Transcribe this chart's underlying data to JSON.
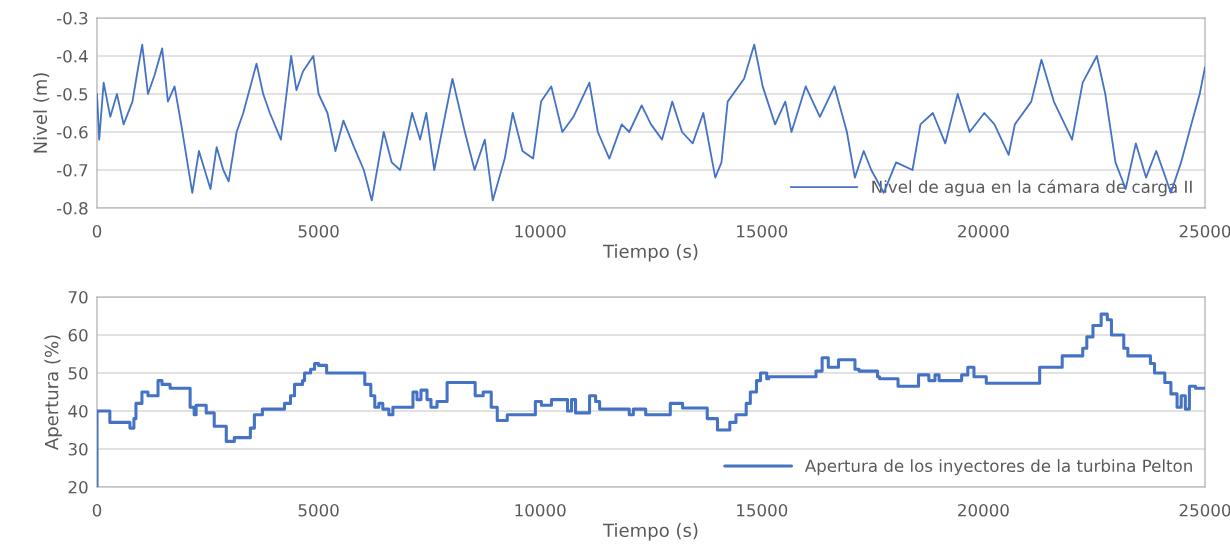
{
  "chart_data": [
    {
      "type": "line",
      "xlabel": "Tiempo (s)",
      "ylabel": "Nivel (m)",
      "xlim": [
        0,
        25000
      ],
      "xticks": [
        0,
        5000,
        10000,
        15000,
        20000,
        25000
      ],
      "ylim": [
        -0.8,
        -0.3
      ],
      "yticks": [
        -0.8,
        -0.7,
        -0.6,
        -0.5,
        -0.4,
        -0.3
      ],
      "grid": "y",
      "legend": "bottom right",
      "series": [
        {
          "name": "Nivel de agua en la cámara de carga II",
          "color": "#4472c4",
          "x": [
            0,
            50,
            150,
            300,
            450,
            600,
            800,
            900,
            1020,
            1150,
            1300,
            1470,
            1600,
            1750,
            1900,
            2150,
            2300,
            2560,
            2700,
            2850,
            2970,
            3150,
            3300,
            3600,
            3750,
            3900,
            4150,
            4380,
            4500,
            4650,
            4880,
            5000,
            5200,
            5380,
            5560,
            5800,
            6020,
            6200,
            6470,
            6650,
            6840,
            7110,
            7290,
            7430,
            7610,
            8020,
            8300,
            8520,
            8750,
            8930,
            9200,
            9380,
            9600,
            9840,
            10020,
            10250,
            10500,
            10750,
            11110,
            11300,
            11560,
            11840,
            12009,
            12290,
            12500,
            12750,
            12980,
            13200,
            13440,
            13680,
            13950,
            14090,
            14230,
            14600,
            14830,
            15020,
            15300,
            15530,
            15670,
            15990,
            16310,
            16640,
            16920,
            17100,
            17300,
            17470,
            17750,
            18030,
            18400,
            18580,
            18860,
            19140,
            19420,
            19690,
            20020,
            20250,
            20570,
            20710,
            21080,
            21310,
            21590,
            22000,
            22240,
            22560,
            22750,
            22980,
            23210,
            23440,
            23670,
            23900,
            24230,
            24460,
            24690,
            24880,
            25000
          ],
          "values": [
            -0.5,
            -0.62,
            -0.47,
            -0.56,
            -0.5,
            -0.58,
            -0.52,
            -0.45,
            -0.37,
            -0.5,
            -0.45,
            -0.38,
            -0.52,
            -0.48,
            -0.58,
            -0.76,
            -0.65,
            -0.75,
            -0.64,
            -0.7,
            -0.73,
            -0.6,
            -0.55,
            -0.42,
            -0.5,
            -0.55,
            -0.62,
            -0.4,
            -0.49,
            -0.44,
            -0.4,
            -0.5,
            -0.55,
            -0.65,
            -0.57,
            -0.64,
            -0.7,
            -0.78,
            -0.6,
            -0.68,
            -0.7,
            -0.55,
            -0.62,
            -0.55,
            -0.7,
            -0.46,
            -0.6,
            -0.7,
            -0.62,
            -0.78,
            -0.67,
            -0.55,
            -0.65,
            -0.67,
            -0.52,
            -0.48,
            -0.6,
            -0.56,
            -0.47,
            -0.6,
            -0.67,
            -0.58,
            -0.6,
            -0.53,
            -0.58,
            -0.62,
            -0.52,
            -0.6,
            -0.63,
            -0.55,
            -0.72,
            -0.68,
            -0.52,
            -0.46,
            -0.37,
            -0.48,
            -0.58,
            -0.52,
            -0.6,
            -0.48,
            -0.56,
            -0.48,
            -0.6,
            -0.72,
            -0.65,
            -0.7,
            -0.76,
            -0.68,
            -0.7,
            -0.58,
            -0.55,
            -0.63,
            -0.5,
            -0.6,
            -0.55,
            -0.58,
            -0.66,
            -0.58,
            -0.52,
            -0.41,
            -0.52,
            -0.62,
            -0.47,
            -0.4,
            -0.5,
            -0.68,
            -0.75,
            -0.63,
            -0.72,
            -0.65,
            -0.76,
            -0.68,
            -0.58,
            -0.5,
            -0.43
          ]
        }
      ]
    },
    {
      "type": "step",
      "xlabel": "Tiempo (s)",
      "ylabel": "Apertura (%)",
      "xlim": [
        0,
        25000
      ],
      "xticks": [
        0,
        5000,
        10000,
        15000,
        20000,
        25000
      ],
      "ylim": [
        20,
        70
      ],
      "yticks": [
        20,
        30,
        40,
        50,
        60,
        70
      ],
      "grid": "y",
      "legend": "bottom right",
      "series": [
        {
          "name": "Apertura de los inyectores de la turbina Pelton",
          "color": "#4472c4",
          "x": [
            0,
            0,
            290,
            743,
            833,
            879,
            1014,
            1150,
            1377,
            1467,
            1649,
            2101,
            2192,
            2237,
            2464,
            2645,
            2917,
            3098,
            3460,
            3551,
            3732,
            4230,
            4366,
            4457,
            4638,
            4683,
            4819,
            4909,
            5000,
            5181,
            6042,
            6178,
            6268,
            6359,
            6449,
            6585,
            6676,
            7129,
            7219,
            7310,
            7446,
            7536,
            7672,
            7899,
            8533,
            8714,
            8895,
            9031,
            9257,
            9891,
            10027,
            10254,
            10616,
            10707,
            10797,
            11114,
            11250,
            11341,
            12009,
            12102,
            12380,
            12935,
            13213,
            13769,
            14000,
            14278,
            14417,
            14648,
            14741,
            14880,
            14972,
            15111,
            15157,
            16222,
            16361,
            16500,
            16731,
            17102,
            17194,
            17611,
            17657,
            18074,
            18537,
            18769,
            18907,
            19000,
            19509,
            19648,
            19787,
            20065,
            21269,
            21778,
            22241,
            22333,
            22472,
            22657,
            22796,
            22889,
            23167,
            23259,
            23769,
            23861,
            24093,
            24231,
            24370,
            24463,
            24556,
            24648,
            24787,
            25000
          ],
          "values": [
            20,
            40,
            37,
            35.5,
            38,
            42,
            45,
            44,
            48,
            47,
            46,
            41,
            39,
            41.5,
            39.5,
            36,
            32,
            33,
            35.5,
            39,
            40.5,
            42,
            44,
            47,
            48,
            50,
            51,
            52.5,
            52,
            50,
            47,
            44,
            41,
            42,
            40.5,
            39,
            41,
            45,
            43,
            45.5,
            43,
            41,
            42.5,
            47.5,
            44,
            45,
            41,
            37.5,
            39,
            42.5,
            41.5,
            43,
            40,
            43,
            39.5,
            44,
            42.5,
            40.5,
            39,
            40.5,
            39,
            42,
            40.8,
            38,
            35,
            37,
            39,
            42,
            45,
            48,
            50,
            48.5,
            49,
            50.5,
            54,
            51.5,
            53.5,
            51,
            50.5,
            49,
            48.5,
            46.5,
            49.5,
            48,
            49.5,
            48,
            49.5,
            51.5,
            49,
            47.3,
            51.5,
            54.5,
            56.5,
            59.5,
            62.5,
            65.5,
            64,
            60,
            56.5,
            54.5,
            52.5,
            50,
            47.5,
            44.5,
            41,
            44,
            40.5,
            46.5,
            46,
            46
          ]
        }
      ]
    }
  ]
}
